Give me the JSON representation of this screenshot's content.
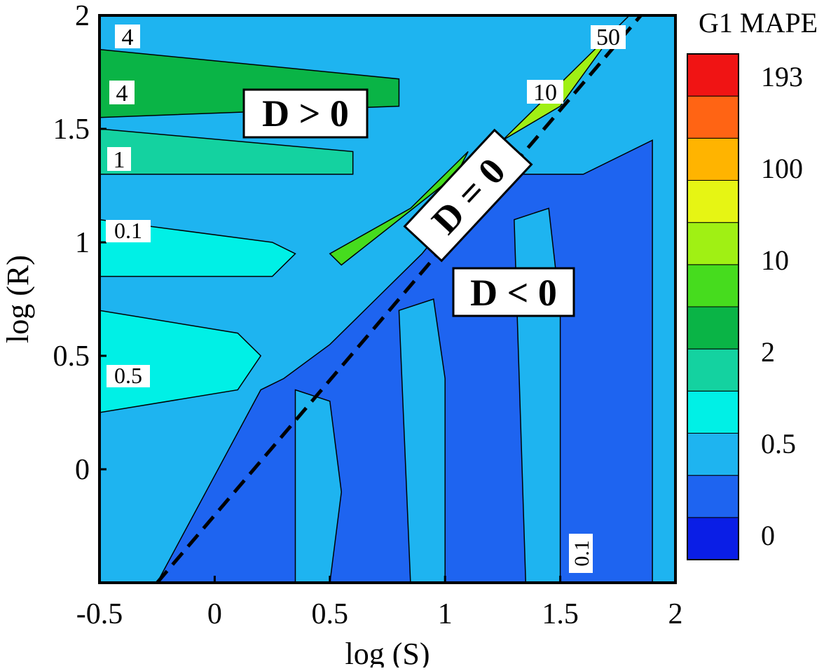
{
  "chart_data": {
    "type": "heatmap",
    "subtype": "filled-contour",
    "title": "",
    "xlabel": "log (S)",
    "ylabel": "log (R)",
    "xlim": [
      -0.5,
      2
    ],
    "ylim": [
      -0.5,
      2
    ],
    "x_ticks": [
      "-0.5",
      "0",
      "0.5",
      "1",
      "1.5",
      "2"
    ],
    "y_ticks": [
      "2",
      "1.5",
      "1",
      "0.5",
      "0"
    ],
    "colorbar": {
      "title": "G1 MAPE",
      "labels": [
        "193",
        "100",
        "10",
        "2",
        "0.5",
        "0"
      ],
      "levels": [
        "0",
        "0.25",
        "0.5",
        "1",
        "2",
        "5",
        "10",
        "50",
        "100",
        "150",
        "193",
        "250"
      ],
      "colors": [
        "#0a1ee6",
        "#1e64f0",
        "#1eb4f0",
        "#00f0e6",
        "#14d2a0",
        "#0ab446",
        "#46dc1e",
        "#a0f014",
        "#e6f514",
        "#ffb400",
        "#ff6414",
        "#f01414"
      ]
    },
    "region_labels": [
      "D > 0",
      "D = 0",
      "D < 0"
    ],
    "contour_labels": [
      "4",
      "4",
      "1",
      "0.1",
      "0.5",
      "50",
      "10",
      "0.1"
    ],
    "boundary_line": {
      "style": "dashed",
      "x": [
        -0.25,
        1.85
      ],
      "y": [
        -0.5,
        2
      ],
      "label": "D = 0"
    },
    "regions": [
      {
        "band": "0-0.25",
        "color": "#1e64f0",
        "x": [
          0.2,
          0.3,
          0.5,
          0.7,
          0.9,
          1.1,
          1.3,
          1.6,
          1.9,
          1.9,
          -0.25
        ],
        "y": [
          0.35,
          0.4,
          0.55,
          0.75,
          0.95,
          1.2,
          1.3,
          1.3,
          1.45,
          -0.5,
          -0.5
        ]
      },
      {
        "band": "0.25-0.5",
        "color": "#1eb4f0",
        "x": [
          0.35,
          0.5,
          0.55,
          0.5,
          0.35
        ],
        "y": [
          0.35,
          0.3,
          -0.1,
          -0.5,
          -0.5
        ]
      },
      {
        "band": "0.25-0.5",
        "color": "#1eb4f0",
        "x": [
          0.8,
          0.95,
          1.0,
          1.0,
          0.85
        ],
        "y": [
          0.7,
          0.75,
          0.4,
          -0.5,
          -0.5
        ]
      },
      {
        "band": "0.25-0.5",
        "color": "#1eb4f0",
        "x": [
          1.3,
          1.45,
          1.5,
          1.5,
          1.35
        ],
        "y": [
          1.1,
          1.15,
          0.7,
          -0.5,
          -0.5
        ]
      },
      {
        "band": "0.5-1",
        "color": "#00f0e6",
        "x": [
          -0.5,
          0.25,
          0.35,
          0.25,
          -0.5
        ],
        "y": [
          1.1,
          1.0,
          0.95,
          0.85,
          0.85
        ]
      },
      {
        "band": "0.5-1",
        "color": "#00f0e6",
        "x": [
          -0.5,
          0.1,
          0.2,
          0.1,
          -0.5
        ],
        "y": [
          0.7,
          0.6,
          0.5,
          0.35,
          0.25
        ]
      },
      {
        "band": "1-2",
        "color": "#14d2a0",
        "x": [
          -0.5,
          0.6,
          0.6,
          -0.5
        ],
        "y": [
          1.5,
          1.4,
          1.3,
          1.3
        ]
      },
      {
        "band": "2-5",
        "color": "#0ab446",
        "x": [
          -0.5,
          0.8,
          0.8,
          -0.5
        ],
        "y": [
          1.85,
          1.72,
          1.6,
          1.55
        ]
      },
      {
        "band": "5-10",
        "color": "#46dc1e",
        "x": [
          0.5,
          0.85,
          1.1,
          1.05,
          0.55
        ],
        "y": [
          0.95,
          1.15,
          1.4,
          1.3,
          0.9
        ]
      },
      {
        "band": "10-50",
        "color": "#a0f014",
        "x": [
          1.25,
          1.55,
          1.8,
          1.75,
          1.5
        ],
        "y": [
          1.45,
          1.75,
          2.0,
          1.95,
          1.6
        ]
      }
    ]
  }
}
